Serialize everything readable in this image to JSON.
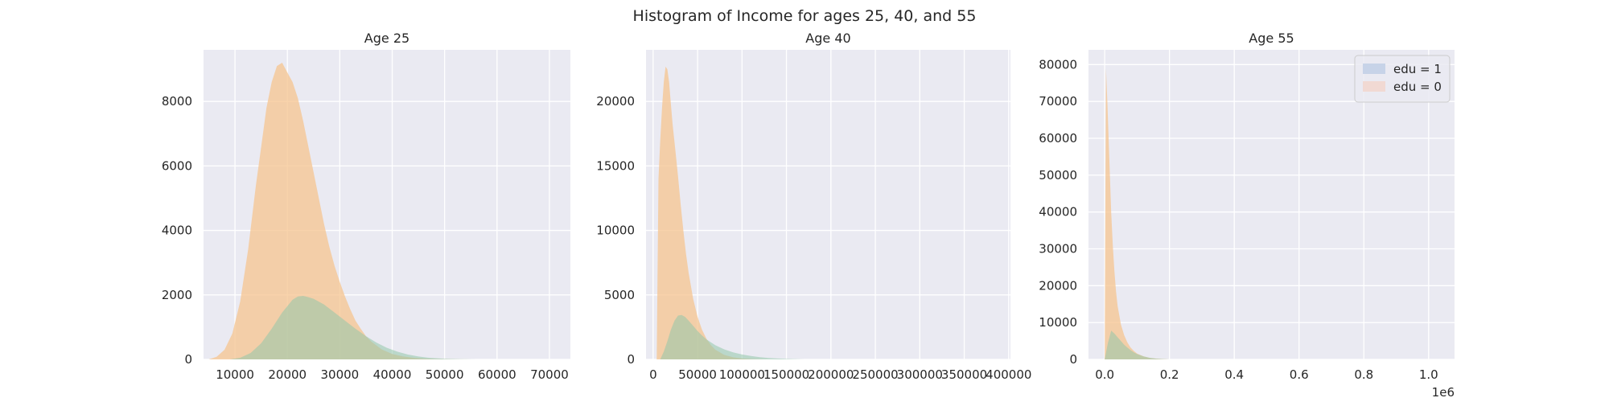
{
  "figure": {
    "suptitle": "Histogram of Income for ages 25, 40, and 55"
  },
  "colors": {
    "background": "#eaeaf2",
    "grid": "#ffffff",
    "tick_text": "#262626",
    "edu1": "#92c6a9",
    "edu0": "#f5c48f"
  },
  "legend": {
    "location": "upper right of Age 55 panel",
    "entries": [
      {
        "label": "edu = 1",
        "color": "#c7d3e8"
      },
      {
        "label": "edu = 0",
        "color": "#f1d9d3"
      }
    ]
  },
  "chart_data": [
    {
      "type": "area",
      "title": "Age 25",
      "xlabel": "",
      "ylabel": "",
      "xlim": [
        4000,
        74000
      ],
      "ylim": [
        0,
        9600
      ],
      "xticks": [
        10000,
        20000,
        30000,
        40000,
        50000,
        60000,
        70000
      ],
      "xtick_labels": [
        "10000",
        "20000",
        "30000",
        "40000",
        "50000",
        "60000",
        "70000"
      ],
      "yticks": [
        0,
        2000,
        4000,
        6000,
        8000
      ],
      "ytick_labels": [
        "0",
        "2000",
        "4000",
        "6000",
        "8000"
      ],
      "grid": true,
      "series": [
        {
          "name": "edu = 0",
          "color_key": "edu0",
          "x": [
            5000,
            6500,
            8000,
            9500,
            11000,
            12500,
            14000,
            15000,
            16000,
            17000,
            18000,
            19000,
            20000,
            21000,
            22000,
            23000,
            24000,
            25000,
            26000,
            27000,
            28000,
            29000,
            30000,
            31000,
            32000,
            33000,
            34000,
            35000,
            36000,
            38000,
            40000,
            42000,
            44000,
            46000,
            48000,
            50000,
            52000,
            55000
          ],
          "values": [
            0,
            80,
            300,
            800,
            1800,
            3400,
            5400,
            6600,
            7800,
            8600,
            9100,
            9200,
            8900,
            8600,
            8100,
            7400,
            6600,
            5800,
            5000,
            4200,
            3500,
            2900,
            2400,
            1950,
            1550,
            1200,
            950,
            720,
            550,
            310,
            170,
            95,
            50,
            26,
            13,
            6,
            2,
            0
          ]
        },
        {
          "name": "edu = 1",
          "color_key": "edu1",
          "x": [
            9000,
            11000,
            13000,
            15000,
            17000,
            19000,
            21000,
            22000,
            23000,
            24000,
            25000,
            27000,
            29000,
            31000,
            33000,
            35000,
            37000,
            39000,
            41000,
            43000,
            45000,
            47000,
            50000,
            53000,
            56000
          ],
          "values": [
            0,
            50,
            200,
            500,
            950,
            1450,
            1850,
            1950,
            1970,
            1930,
            1880,
            1700,
            1450,
            1200,
            950,
            720,
            520,
            360,
            240,
            150,
            90,
            50,
            20,
            6,
            0
          ]
        }
      ]
    },
    {
      "type": "area",
      "title": "Age 40",
      "xlabel": "",
      "ylabel": "",
      "xlim": [
        -8000,
        402000
      ],
      "ylim": [
        0,
        24000
      ],
      "xticks": [
        0,
        50000,
        100000,
        150000,
        200000,
        250000,
        300000,
        350000,
        400000
      ],
      "xtick_labels": [
        "0",
        "50000",
        "100000",
        "150000",
        "200000",
        "250000",
        "300000",
        "350000",
        "400000"
      ],
      "yticks": [
        0,
        5000,
        10000,
        15000,
        20000
      ],
      "ytick_labels": [
        "0",
        "5000",
        "10000",
        "15000",
        "20000"
      ],
      "grid": true,
      "series": [
        {
          "name": "edu = 0",
          "color_key": "edu0",
          "x": [
            4000,
            6000,
            8000,
            10000,
            12000,
            14000,
            16000,
            18000,
            20000,
            22000,
            25000,
            28000,
            31000,
            34000,
            37000,
            40000,
            45000,
            50000,
            55000,
            60000,
            65000,
            70000,
            80000,
            90000,
            100000,
            110000,
            120000,
            130000
          ],
          "values": [
            0,
            14000,
            17000,
            19500,
            21500,
            22700,
            22500,
            21500,
            19800,
            18200,
            16200,
            14200,
            12000,
            10000,
            8200,
            6700,
            4700,
            3300,
            2300,
            1600,
            1100,
            750,
            350,
            160,
            70,
            30,
            10,
            0
          ]
        },
        {
          "name": "edu = 1",
          "color_key": "edu1",
          "x": [
            8000,
            12000,
            16000,
            20000,
            24000,
            28000,
            32000,
            36000,
            40000,
            45000,
            50000,
            55000,
            60000,
            70000,
            80000,
            90000,
            100000,
            110000,
            120000,
            130000,
            140000,
            150000,
            170000
          ],
          "values": [
            0,
            600,
            1400,
            2300,
            3000,
            3400,
            3450,
            3300,
            3000,
            2600,
            2200,
            1850,
            1550,
            1100,
            780,
            550,
            380,
            260,
            170,
            110,
            70,
            40,
            0
          ]
        }
      ]
    },
    {
      "type": "area",
      "title": "Age 55",
      "xlabel": "",
      "ylabel": "",
      "offset_label": "1e6",
      "xlim": [
        -0.05,
        1.08
      ],
      "ylim": [
        0,
        84000
      ],
      "xticks": [
        0.0,
        0.2,
        0.4,
        0.6,
        0.8,
        1.0
      ],
      "xtick_labels": [
        "0.0",
        "0.2",
        "0.4",
        "0.6",
        "0.8",
        "1.0"
      ],
      "yticks": [
        0,
        10000,
        20000,
        30000,
        40000,
        50000,
        60000,
        70000,
        80000
      ],
      "ytick_labels": [
        "0",
        "10000",
        "20000",
        "30000",
        "40000",
        "50000",
        "60000",
        "70000",
        "80000"
      ],
      "grid": true,
      "series": [
        {
          "name": "edu = 0",
          "color_key": "edu0",
          "x": [
            0.0,
            0.004,
            0.008,
            0.012,
            0.016,
            0.02,
            0.025,
            0.03,
            0.035,
            0.04,
            0.05,
            0.06,
            0.07,
            0.08,
            0.09,
            0.1,
            0.12,
            0.14,
            0.16,
            0.18,
            0.2
          ],
          "values": [
            0,
            79000,
            70000,
            60000,
            50000,
            40000,
            31000,
            24000,
            18500,
            14500,
            9500,
            6600,
            4600,
            3200,
            2300,
            1600,
            800,
            400,
            190,
            80,
            0
          ]
        },
        {
          "name": "edu = 1",
          "color_key": "edu1",
          "x": [
            0.0,
            0.01,
            0.02,
            0.03,
            0.04,
            0.05,
            0.06,
            0.07,
            0.08,
            0.09,
            0.1,
            0.12,
            0.14,
            0.16,
            0.18,
            0.2
          ],
          "values": [
            0,
            4500,
            7800,
            7000,
            6000,
            5000,
            4000,
            3200,
            2500,
            1900,
            1450,
            800,
            420,
            200,
            90,
            0
          ]
        }
      ]
    }
  ]
}
